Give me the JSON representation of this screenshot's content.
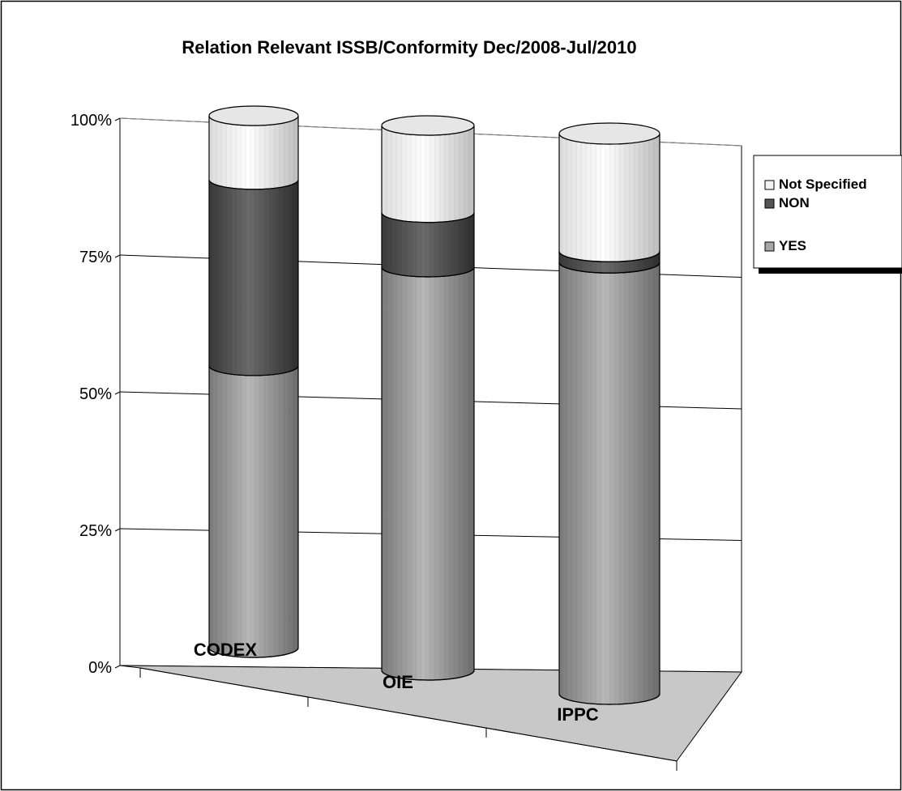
{
  "chart_data": {
    "type": "bar",
    "subtype": "stacked-percent-3d-cylinder",
    "title": "Relation Relevant ISSB/Conformity  Dec/2008-Jul/2010",
    "categories": [
      "CODEX",
      "OIE",
      "IPPC"
    ],
    "series": [
      {
        "name": "YES",
        "values": [
          53,
          74,
          77
        ],
        "color": "#a6a6a6"
      },
      {
        "name": "NON",
        "values": [
          35,
          10,
          2
        ],
        "color": "#555555"
      },
      {
        "name": "Not Specified",
        "values": [
          12,
          16,
          21
        ],
        "color": "#f2f2f2"
      }
    ],
    "yticks": [
      "0%",
      "25%",
      "50%",
      "75%",
      "100%"
    ],
    "ylim": [
      0,
      100
    ],
    "grid": true,
    "legend_position": "right",
    "legend_order": [
      "Not Specified",
      "NON",
      "YES"
    ]
  }
}
